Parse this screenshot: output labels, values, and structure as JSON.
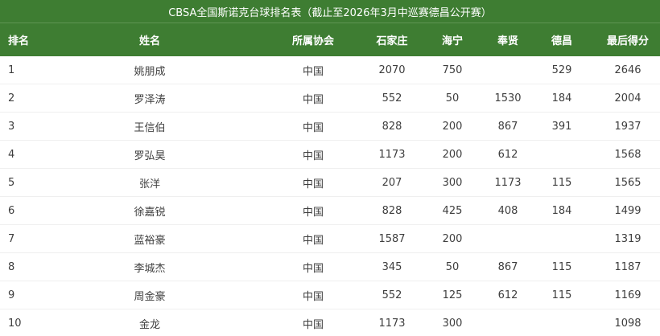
{
  "title": "CBSA全国斯诺克台球排名表（截止至2026年3月中巡赛德昌公开赛）",
  "colors": {
    "header_green": "#3e7d32",
    "header_divider": "#5f9553",
    "row_border": "#efefef",
    "header_text": "#ffffff",
    "body_text": "#3e3e3e"
  },
  "table": {
    "columns": [
      {
        "key": "rank",
        "label": "排名"
      },
      {
        "key": "name",
        "label": "姓名"
      },
      {
        "key": "assoc",
        "label": "所属协会"
      },
      {
        "key": "shijiazhuang",
        "label": "石家庄"
      },
      {
        "key": "haining",
        "label": "海宁"
      },
      {
        "key": "fengxian",
        "label": "奉贤"
      },
      {
        "key": "dechang",
        "label": "德昌"
      },
      {
        "key": "final",
        "label": "最后得分"
      }
    ],
    "rows": [
      {
        "rank": "1",
        "name": "姚朋成",
        "assoc": "中国",
        "shijiazhuang": "2070",
        "haining": "750",
        "fengxian": "",
        "dechang": "529",
        "final": "2646"
      },
      {
        "rank": "2",
        "name": "罗泽涛",
        "assoc": "中国",
        "shijiazhuang": "552",
        "haining": "50",
        "fengxian": "1530",
        "dechang": "184",
        "final": "2004"
      },
      {
        "rank": "3",
        "name": "王信伯",
        "assoc": "中国",
        "shijiazhuang": "828",
        "haining": "200",
        "fengxian": "867",
        "dechang": "391",
        "final": "1937"
      },
      {
        "rank": "4",
        "name": "罗弘昊",
        "assoc": "中国",
        "shijiazhuang": "1173",
        "haining": "200",
        "fengxian": "612",
        "dechang": "",
        "final": "1568"
      },
      {
        "rank": "5",
        "name": "张洋",
        "assoc": "中国",
        "shijiazhuang": "207",
        "haining": "300",
        "fengxian": "1173",
        "dechang": "115",
        "final": "1565"
      },
      {
        "rank": "6",
        "name": "徐嘉锐",
        "assoc": "中国",
        "shijiazhuang": "828",
        "haining": "425",
        "fengxian": "408",
        "dechang": "184",
        "final": "1499"
      },
      {
        "rank": "7",
        "name": "蓝裕豪",
        "assoc": "中国",
        "shijiazhuang": "1587",
        "haining": "200",
        "fengxian": "",
        "dechang": "",
        "final": "1319"
      },
      {
        "rank": "8",
        "name": "李城杰",
        "assoc": "中国",
        "shijiazhuang": "345",
        "haining": "50",
        "fengxian": "867",
        "dechang": "115",
        "final": "1187"
      },
      {
        "rank": "9",
        "name": "周金豪",
        "assoc": "中国",
        "shijiazhuang": "552",
        "haining": "125",
        "fengxian": "612",
        "dechang": "115",
        "final": "1169"
      },
      {
        "rank": "10",
        "name": "金龙",
        "assoc": "中国",
        "shijiazhuang": "1173",
        "haining": "300",
        "fengxian": "",
        "dechang": "",
        "final": "1098"
      }
    ]
  }
}
